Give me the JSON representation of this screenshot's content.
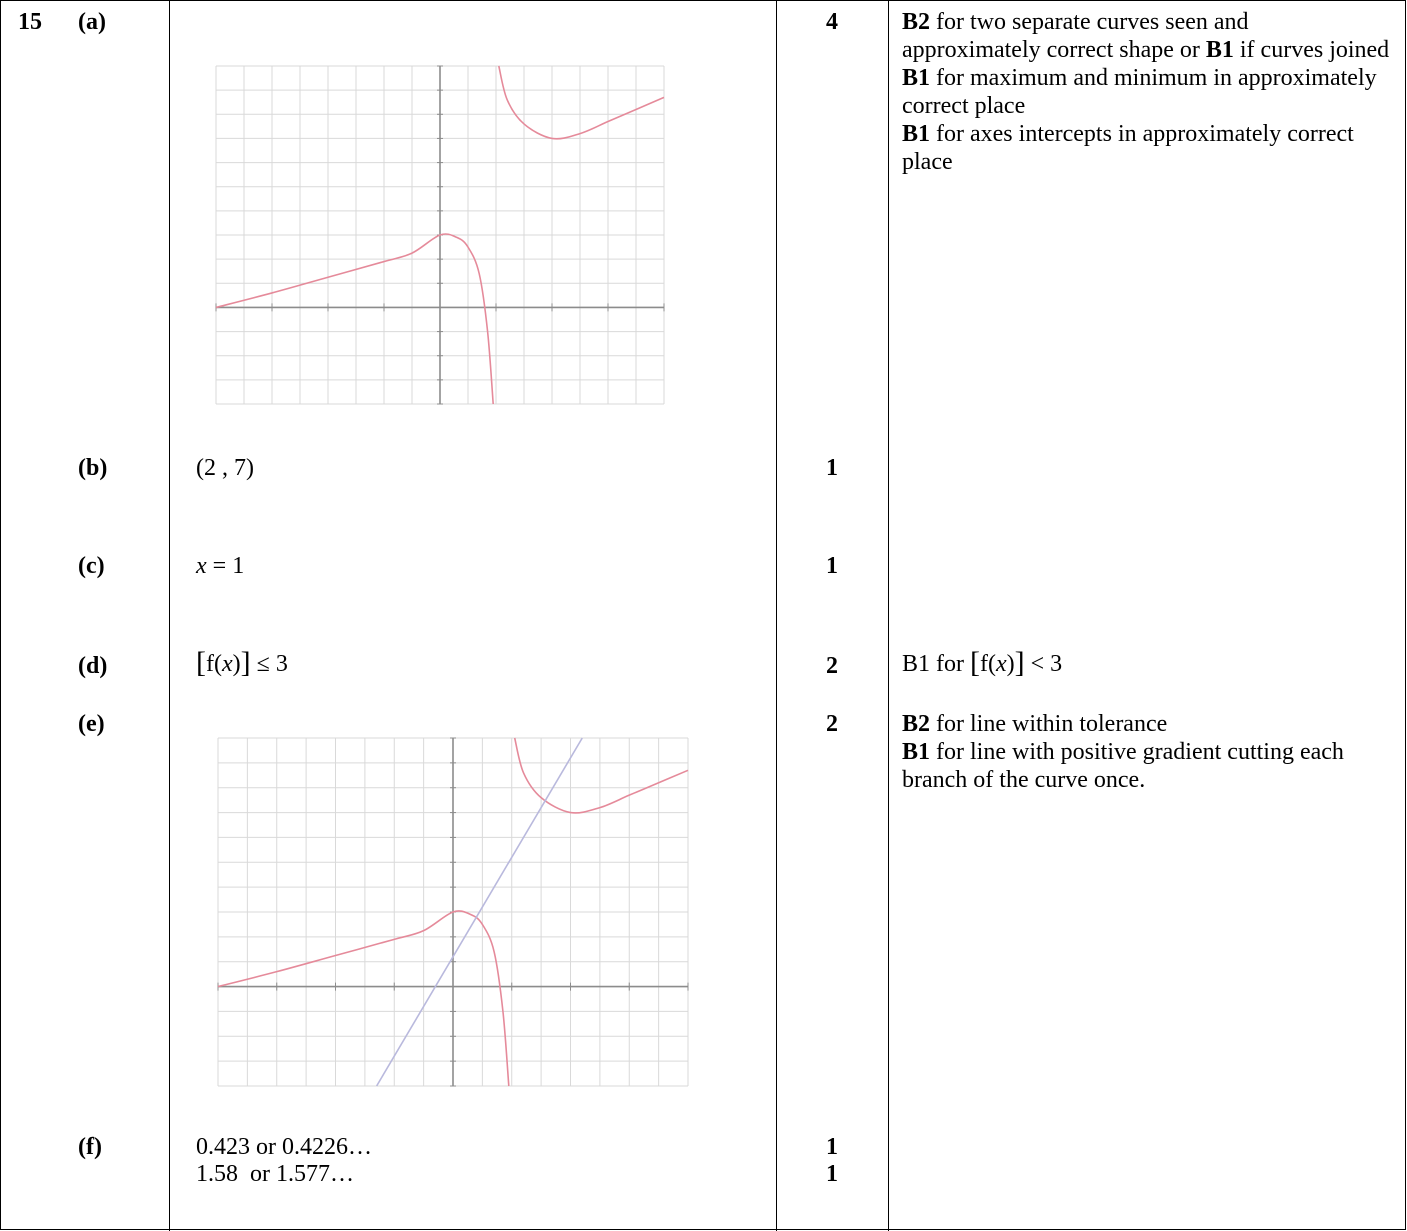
{
  "question": {
    "number": "15",
    "parts": [
      {
        "label": "(a)",
        "marks": "4",
        "guidance": [
          {
            "bold": "B2",
            "text": " for two separate curves seen and approximately correct shape or "
          },
          {
            "bold": "B1",
            "text": " if curves joined"
          },
          {
            "bold": "B1",
            "text": " for maximum and minimum in approximately correct place"
          },
          {
            "bold": "B1",
            "text": " for axes intercepts in approximately correct place"
          }
        ]
      },
      {
        "label": "(b)",
        "answer": "(2 , 7)",
        "marks": "1"
      },
      {
        "label": "(c)",
        "answer_var": "x",
        "answer_rest": " = 1",
        "marks": "1"
      },
      {
        "label": "(d)",
        "answer_fn": "f(",
        "answer_var": "x",
        "answer_close": ")",
        "answer_ineq": " ≤ 3",
        "marks": "2",
        "guidance_prefix": "B1 for ",
        "guidance_ineq": " < 3"
      },
      {
        "label": "(e)",
        "marks": "2",
        "guidance": [
          {
            "bold": "B2",
            "text": " for line within tolerance"
          },
          {
            "bold": "B1",
            "text": " for line with positive gradient cutting each branch of the curve once."
          }
        ]
      },
      {
        "label": "(f)",
        "answer_lines": [
          "0.423 or 0.4226…",
          "1.58  or 1.577…"
        ],
        "marks_lines": [
          "1",
          "1"
        ]
      }
    ]
  },
  "colors": {
    "curve": "#e58a9a",
    "line": "#b9b9dd",
    "grid": "#d9d9d9",
    "axis": "#8c8c8c",
    "tick_label": "#b5b5b5"
  },
  "chart_data": [
    {
      "type": "line",
      "part": "(a)",
      "xlim": [
        -4,
        4
      ],
      "ylim": [
        -4,
        10
      ],
      "grid": true,
      "series": [
        {
          "x": [
            -4,
            -3,
            -2,
            -1,
            -0.5,
            0,
            0.3,
            0.5,
            0.7,
            0.85,
            0.95
          ],
          "y": [
            0,
            0.6,
            1.25,
            1.9,
            2.25,
            3,
            2.9,
            2.5,
            1.4,
            -1.0,
            -4
          ]
        },
        {
          "x": [
            1.05,
            1.2,
            1.5,
            2,
            2.5,
            3,
            3.5,
            4
          ],
          "y": [
            10,
            8.6,
            7.6,
            7,
            7.2,
            7.7,
            8.2,
            8.7
          ]
        }
      ]
    },
    {
      "type": "line",
      "part": "(e)",
      "xlim": [
        -4,
        4
      ],
      "ylim": [
        -4,
        10
      ],
      "grid": true,
      "series": [
        {
          "x": [
            -4,
            -3,
            -2,
            -1,
            -0.5,
            0,
            0.3,
            0.5,
            0.7,
            0.85,
            0.95
          ],
          "y": [
            0,
            0.6,
            1.25,
            1.9,
            2.25,
            3,
            2.9,
            2.5,
            1.4,
            -1.0,
            -4
          ]
        },
        {
          "x": [
            1.05,
            1.2,
            1.5,
            2,
            2.5,
            3,
            3.5,
            4
          ],
          "y": [
            10,
            8.6,
            7.6,
            7,
            7.2,
            7.7,
            8.2,
            8.7
          ]
        },
        {
          "x": [
            -1.3,
            2.2
          ],
          "y": [
            -4,
            10
          ]
        }
      ]
    }
  ]
}
